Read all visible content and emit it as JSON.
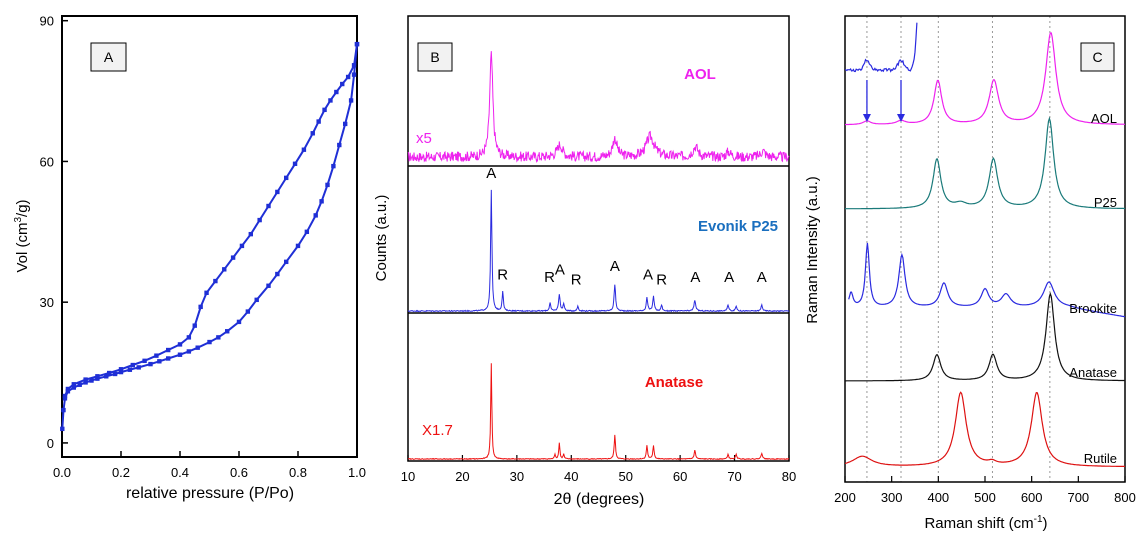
{
  "chart_data": [
    {
      "panel": "A",
      "type": "line",
      "panel_label": "A",
      "xlabel": "relative pressure (P/Po)",
      "ylabel_parts": {
        "pre": "Vol (cm",
        "sup": "3",
        "post": "/g)"
      },
      "xlim": [
        0,
        1.0
      ],
      "ylim": [
        -3,
        91
      ],
      "xticks": [
        0.0,
        0.2,
        0.4,
        0.6,
        0.8,
        1.0
      ],
      "xtick_labels": [
        "0.0",
        "0.2",
        "0.4",
        "0.6",
        "0.8",
        "1.0"
      ],
      "yticks": [
        0,
        30,
        60,
        90
      ],
      "ytick_labels": [
        "0",
        "30",
        "60",
        "90"
      ],
      "color": "#1f2fd6",
      "series": [
        {
          "branch": "adsorption",
          "x": [
            0.001,
            0.005,
            0.01,
            0.02,
            0.04,
            0.06,
            0.08,
            0.1,
            0.12,
            0.15,
            0.18,
            0.2,
            0.23,
            0.26,
            0.3,
            0.33,
            0.36,
            0.4,
            0.43,
            0.46,
            0.5,
            0.53,
            0.56,
            0.6,
            0.63,
            0.66,
            0.7,
            0.73,
            0.76,
            0.8,
            0.83,
            0.86,
            0.88,
            0.9,
            0.92,
            0.94,
            0.96,
            0.98,
            0.99,
            1.0
          ],
          "y": [
            3,
            7,
            9.5,
            11,
            11.8,
            12.4,
            12.9,
            13.3,
            13.7,
            14.2,
            14.7,
            15.1,
            15.6,
            16.1,
            16.8,
            17.4,
            18.0,
            18.8,
            19.5,
            20.3,
            21.5,
            22.5,
            23.8,
            25.8,
            28.0,
            30.5,
            33.5,
            36.0,
            38.6,
            42.0,
            45.0,
            48.5,
            51.5,
            55.0,
            59.0,
            63.5,
            68.0,
            73.0,
            78.5,
            85.0
          ]
        },
        {
          "branch": "desorption",
          "x": [
            1.0,
            0.99,
            0.97,
            0.95,
            0.93,
            0.91,
            0.89,
            0.87,
            0.85,
            0.82,
            0.79,
            0.76,
            0.73,
            0.7,
            0.67,
            0.64,
            0.61,
            0.58,
            0.55,
            0.52,
            0.49,
            0.47,
            0.45,
            0.43,
            0.4,
            0.36,
            0.32,
            0.28,
            0.24,
            0.2,
            0.16,
            0.12,
            0.08,
            0.04,
            0.02,
            0.01
          ],
          "y": [
            85.0,
            80.5,
            78.0,
            76.5,
            74.8,
            73.0,
            71.0,
            68.5,
            66.0,
            62.5,
            59.5,
            56.5,
            53.5,
            50.5,
            47.5,
            44.5,
            42.0,
            39.5,
            37.0,
            34.5,
            32.0,
            29.0,
            25.0,
            22.5,
            21.0,
            19.8,
            18.6,
            17.5,
            16.6,
            15.7,
            14.9,
            14.2,
            13.5,
            12.5,
            11.5,
            10.0
          ]
        }
      ]
    },
    {
      "panel": "B",
      "type": "line",
      "panel_label": "B",
      "xlabel_parts": {
        "pre": "2",
        "theta": "θ",
        "post": " (degrees)"
      },
      "ylabel": "Counts (a.u.)",
      "xlim": [
        10,
        80
      ],
      "xticks": [
        10,
        20,
        30,
        40,
        50,
        60,
        70,
        80
      ],
      "xtick_labels": [
        "10",
        "20",
        "30",
        "40",
        "50",
        "60",
        "70",
        "80"
      ],
      "series": [
        {
          "name": "AOL",
          "multiplier_label": "x5",
          "color": "#ee22ee",
          "peaks": [
            [
              25.3,
              1.0,
              0.35
            ],
            [
              37.9,
              0.12,
              0.6
            ],
            [
              48.0,
              0.18,
              0.5
            ],
            [
              54.5,
              0.2,
              0.9
            ],
            [
              62.8,
              0.1,
              0.6
            ],
            [
              68.9,
              0.05,
              0.5
            ],
            [
              75.2,
              0.06,
              0.5
            ]
          ],
          "noise_level": 0.05
        },
        {
          "name": "Evonik P25",
          "color": "#2a2adf",
          "peaks": [
            [
              25.3,
              1.0,
              0.14
            ],
            [
              27.4,
              0.16,
              0.14
            ],
            [
              36.1,
              0.07,
              0.14
            ],
            [
              37.8,
              0.14,
              0.16
            ],
            [
              38.6,
              0.06,
              0.14
            ],
            [
              41.2,
              0.04,
              0.14
            ],
            [
              48.0,
              0.22,
              0.16
            ],
            [
              53.9,
              0.11,
              0.16
            ],
            [
              55.1,
              0.12,
              0.16
            ],
            [
              56.6,
              0.05,
              0.14
            ],
            [
              62.7,
              0.09,
              0.18
            ],
            [
              68.8,
              0.05,
              0.16
            ],
            [
              70.3,
              0.04,
              0.16
            ],
            [
              75.0,
              0.05,
              0.16
            ]
          ],
          "annotations": [
            {
              "text": "A",
              "x": 25.3,
              "y": 1.1
            },
            {
              "text": "R",
              "x": 27.4,
              "y": 0.26
            },
            {
              "text": "R",
              "x": 36.0,
              "y": 0.24
            },
            {
              "text": "A",
              "x": 37.9,
              "y": 0.3
            },
            {
              "text": "R",
              "x": 40.9,
              "y": 0.22
            },
            {
              "text": "A",
              "x": 48.0,
              "y": 0.33
            },
            {
              "text": "A",
              "x": 54.1,
              "y": 0.26
            },
            {
              "text": "R",
              "x": 56.6,
              "y": 0.22
            },
            {
              "text": "A",
              "x": 62.8,
              "y": 0.24
            },
            {
              "text": "A",
              "x": 69.0,
              "y": 0.24
            },
            {
              "text": "A",
              "x": 75.0,
              "y": 0.24
            }
          ]
        },
        {
          "name": "Anatase",
          "multiplier_label": "X1.7",
          "color": "#ee1111",
          "peaks": [
            [
              25.3,
              1.0,
              0.12
            ],
            [
              37.0,
              0.05,
              0.12
            ],
            [
              37.8,
              0.17,
              0.12
            ],
            [
              38.6,
              0.05,
              0.12
            ],
            [
              48.0,
              0.25,
              0.14
            ],
            [
              53.9,
              0.14,
              0.14
            ],
            [
              55.1,
              0.14,
              0.14
            ],
            [
              62.7,
              0.09,
              0.16
            ],
            [
              68.8,
              0.05,
              0.14
            ],
            [
              70.3,
              0.05,
              0.14
            ],
            [
              75.0,
              0.06,
              0.16
            ]
          ]
        }
      ]
    },
    {
      "panel": "C",
      "type": "line",
      "panel_label": "C",
      "xlabel_parts": {
        "pre": "Raman shift (cm",
        "sup": "-1",
        "post": ")"
      },
      "ylabel": "Raman Intensity (a.u.)",
      "xlim": [
        200,
        800
      ],
      "xticks": [
        200,
        300,
        400,
        500,
        600,
        700,
        800
      ],
      "xtick_labels": [
        "200",
        "300",
        "400",
        "500",
        "600",
        "700",
        "800"
      ],
      "reference_lines": [
        247,
        320,
        400,
        516,
        639
      ],
      "series": [
        {
          "name": "AOL",
          "color": "#ee22ee",
          "peaks": [
            [
              247,
              0.04,
              10
            ],
            [
              320,
              0.04,
              12
            ],
            [
              399,
              0.48,
              10
            ],
            [
              519,
              0.48,
              12
            ],
            [
              641,
              1.0,
              13
            ]
          ]
        },
        {
          "name": "P25",
          "color": "#1a7a7a",
          "peaks": [
            [
              397,
              0.55,
              10
            ],
            [
              448,
              0.05,
              15
            ],
            [
              518,
              0.55,
              11
            ],
            [
              638,
              1.0,
              11
            ]
          ]
        },
        {
          "name": "Brookite",
          "color": "#2a2adf",
          "peaks": [
            [
              213,
              0.23,
              5
            ],
            [
              248,
              1.0,
              5
            ],
            [
              322,
              0.82,
              8
            ],
            [
              412,
              0.38,
              10
            ],
            [
              500,
              0.28,
              10
            ],
            [
              545,
              0.2,
              12
            ],
            [
              637,
              0.4,
              14
            ]
          ]
        },
        {
          "name": "Anatase",
          "color": "#111111",
          "peaks": [
            [
              397,
              0.3,
              10
            ],
            [
              517,
              0.3,
              10
            ],
            [
              640,
              1.0,
              11
            ]
          ]
        },
        {
          "name": "Rutile",
          "color": "#dd1111",
          "peaks": [
            [
              237,
              0.14,
              25
            ],
            [
              448,
              1.0,
              14
            ],
            [
              515,
              0.04,
              10
            ],
            [
              611,
              1.0,
              14
            ]
          ]
        }
      ],
      "inset": {
        "color": "#2a2adf",
        "description_free": true
      }
    }
  ]
}
